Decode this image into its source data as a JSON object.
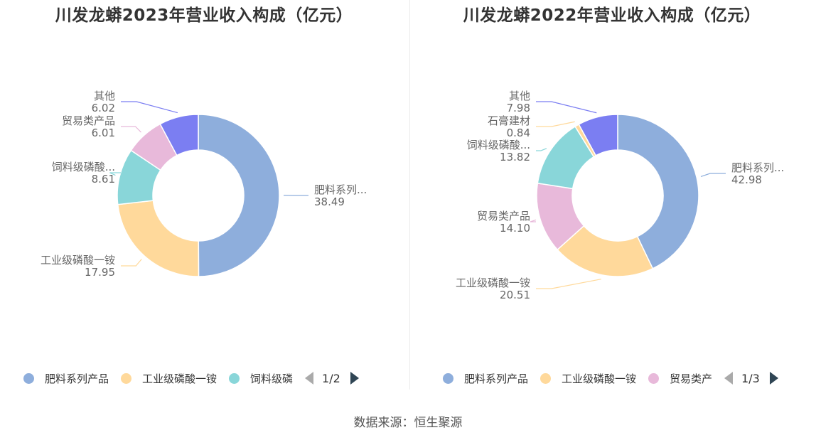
{
  "source": "数据来源：恒生聚源",
  "chart_data": [
    {
      "type": "pie",
      "donut": true,
      "title": "川发龙蟒2023年营业收入构成（亿元）",
      "series": [
        {
          "name": "肥料系列产品",
          "label": "肥料系列...",
          "value": 38.49,
          "value_label": "38.49",
          "color": "#8eaedc"
        },
        {
          "name": "工业级磷酸一铵",
          "label": "工业级磷酸一铵",
          "value": 17.95,
          "value_label": "17.95",
          "color": "#ffd99b"
        },
        {
          "name": "饲料级磷酸...",
          "label": "饲料级磷酸...",
          "value": 8.61,
          "value_label": "8.61",
          "color": "#89d6d9"
        },
        {
          "name": "贸易类产品",
          "label": "贸易类产品",
          "value": 6.01,
          "value_label": "6.01",
          "color": "#e8b9da"
        },
        {
          "name": "其他",
          "label": "其他",
          "value": 6.02,
          "value_label": "6.02",
          "color": "#7b7ef2"
        }
      ],
      "legend": {
        "items": [
          "肥料系列产品",
          "工业级磷酸一铵",
          "饲料级磷"
        ],
        "colors": [
          "#8eaedc",
          "#ffd99b",
          "#89d6d9"
        ],
        "page": "1/2",
        "position": "bottom"
      }
    },
    {
      "type": "pie",
      "donut": true,
      "title": "川发龙蟒2022年营业收入构成（亿元）",
      "series": [
        {
          "name": "肥料系列产品",
          "label": "肥料系列...",
          "value": 42.98,
          "value_label": "42.98",
          "color": "#8eaedc"
        },
        {
          "name": "工业级磷酸一铵",
          "label": "工业级磷酸一铵",
          "value": 20.51,
          "value_label": "20.51",
          "color": "#ffd99b"
        },
        {
          "name": "贸易类产品",
          "label": "贸易类产品",
          "value": 14.1,
          "value_label": "14.10",
          "color": "#e8b9da"
        },
        {
          "name": "饲料级磷酸...",
          "label": "饲料级磷酸...",
          "value": 13.82,
          "value_label": "13.82",
          "color": "#89d6d9"
        },
        {
          "name": "石膏建材",
          "label": "石膏建材",
          "value": 0.84,
          "value_label": "0.84",
          "color": "#ffd99b"
        },
        {
          "name": "其他",
          "label": "其他",
          "value": 7.98,
          "value_label": "7.98",
          "color": "#7b7ef2"
        }
      ],
      "legend": {
        "items": [
          "肥料系列产品",
          "工业级磷酸一铵",
          "贸易类产"
        ],
        "colors": [
          "#8eaedc",
          "#ffd99b",
          "#e8b9da"
        ],
        "page": "1/3",
        "position": "bottom"
      }
    }
  ]
}
